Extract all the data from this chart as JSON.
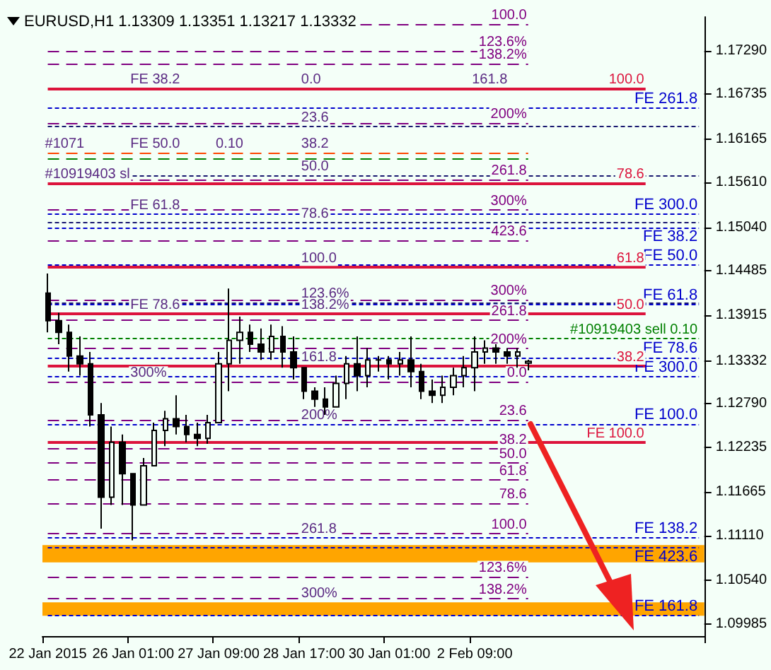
{
  "chart_data": {
    "type": "candlestick",
    "title": "EURUSD,H1 1.13309 1.13351 1.13217 1.13332",
    "color": "#000000",
    "categories": [
      "22 Jan 2015",
      null,
      null,
      null,
      null,
      null,
      null,
      null,
      "26 Jan 01:00",
      null,
      null,
      null,
      null,
      null,
      null,
      null,
      "27 Jan 09:00",
      null,
      null,
      null,
      null,
      null,
      null,
      null,
      "28 Jan 17:00",
      null,
      null,
      null,
      null,
      null,
      null,
      null,
      "30 Jan 01:00",
      null,
      null,
      null,
      null,
      null,
      null,
      null,
      "2 Feb 09:00",
      null,
      null,
      null,
      null,
      null,
      null,
      null,
      null,
      null,
      null,
      null,
      null,
      null,
      null,
      null,
      null,
      null,
      null,
      null,
      null,
      null
    ],
    "ohlc": [
      [
        1.142,
        1.1445,
        1.137,
        1.1385
      ],
      [
        1.1385,
        1.1395,
        1.1355,
        1.137
      ],
      [
        1.137,
        1.138,
        1.132,
        1.134
      ],
      [
        1.134,
        1.1365,
        1.1315,
        1.133
      ],
      [
        1.133,
        1.1345,
        1.125,
        1.1265
      ],
      [
        1.1265,
        1.128,
        1.112,
        1.116
      ],
      [
        1.116,
        1.125,
        1.115,
        1.123
      ],
      [
        1.123,
        1.124,
        1.115,
        1.119
      ],
      [
        1.119,
        1.119,
        1.1105,
        1.115
      ],
      [
        1.115,
        1.121,
        1.115,
        1.12
      ],
      [
        1.12,
        1.1255,
        1.12,
        1.1245
      ],
      [
        1.1245,
        1.127,
        1.1225,
        1.126
      ],
      [
        1.126,
        1.129,
        1.124,
        1.125
      ],
      [
        1.125,
        1.1265,
        1.123,
        1.124
      ],
      [
        1.124,
        1.1255,
        1.1225,
        1.1235
      ],
      [
        1.1235,
        1.1265,
        1.1228,
        1.1255
      ],
      [
        1.1255,
        1.1345,
        1.1255,
        1.133
      ],
      [
        1.133,
        1.1426,
        1.1295,
        1.136
      ],
      [
        1.136,
        1.139,
        1.133,
        1.137
      ],
      [
        1.137,
        1.138,
        1.1345,
        1.1355
      ],
      [
        1.1355,
        1.1375,
        1.1335,
        1.1345
      ],
      [
        1.1345,
        1.138,
        1.1335,
        1.1365
      ],
      [
        1.1365,
        1.1378,
        1.1325,
        1.1345
      ],
      [
        1.1345,
        1.1365,
        1.131,
        1.1325
      ],
      [
        1.1325,
        1.1325,
        1.1285,
        1.1295
      ],
      [
        1.1295,
        1.13,
        1.1275,
        1.1285
      ],
      [
        1.1285,
        1.13,
        1.1265,
        1.1275
      ],
      [
        1.1275,
        1.1315,
        1.1275,
        1.1305
      ],
      [
        1.1305,
        1.134,
        1.1285,
        1.133
      ],
      [
        1.133,
        1.1365,
        1.1295,
        1.1315
      ],
      [
        1.1315,
        1.135,
        1.13,
        1.1335
      ],
      [
        1.1335,
        1.134,
        1.132,
        1.1335
      ],
      [
        1.1335,
        1.134,
        1.131,
        1.133
      ],
      [
        1.133,
        1.1345,
        1.1315,
        1.1335
      ],
      [
        1.1335,
        1.1365,
        1.13,
        1.132
      ],
      [
        1.132,
        1.133,
        1.1285,
        1.1295
      ],
      [
        1.1295,
        1.131,
        1.128,
        1.129
      ],
      [
        1.129,
        1.1315,
        1.128,
        1.13
      ],
      [
        1.13,
        1.1325,
        1.129,
        1.1315
      ],
      [
        1.1315,
        1.134,
        1.13,
        1.1325
      ],
      [
        1.1325,
        1.1365,
        1.1295,
        1.1345
      ],
      [
        1.1345,
        1.136,
        1.133,
        1.135
      ],
      [
        1.135,
        1.1355,
        1.133,
        1.1345
      ],
      [
        1.1345,
        1.135,
        1.133,
        1.134
      ],
      [
        1.134,
        1.135,
        1.1325,
        1.1345
      ],
      [
        1.13309,
        1.13351,
        1.13217,
        1.13332
      ],
      null,
      null,
      null,
      null,
      null,
      null,
      null,
      null,
      null,
      null,
      null,
      null,
      null,
      null,
      null,
      null
    ],
    "ylim": [
      1.0983,
      1.1772
    ],
    "yticks": [
      {
        "value": 1.1729,
        "label": "1.17290"
      },
      {
        "value": 1.16735,
        "label": "1.16735"
      },
      {
        "value": 1.16165,
        "label": "1.16165"
      },
      {
        "value": 1.1561,
        "label": "1.15610"
      },
      {
        "value": 1.1504,
        "label": "1.15040"
      },
      {
        "value": 1.14485,
        "label": "1.14485"
      },
      {
        "value": 1.13915,
        "label": "1.13915"
      },
      {
        "value": 1.13332,
        "label": "1.13332"
      },
      {
        "value": 1.1279,
        "label": "1.12790"
      },
      {
        "value": 1.12235,
        "label": "1.12235"
      },
      {
        "value": 1.11665,
        "label": "1.11665"
      },
      {
        "value": 1.1111,
        "label": "1.11110"
      },
      {
        "value": 1.1054,
        "label": "1.10540"
      },
      {
        "value": 1.09985,
        "label": "1.09985"
      }
    ],
    "bands": [
      {
        "axis": "y",
        "from": 1.1077,
        "to": 1.1099,
        "color": "#ffa500"
      },
      {
        "axis": "y",
        "from": 1.1009,
        "to": 1.1026,
        "color": "#ffa500"
      }
    ],
    "ref_lines": [
      {
        "axis": "y",
        "value": 1.1656,
        "label": "FE 261.8",
        "color": "#0000cd",
        "line_style": "dotted"
      },
      {
        "axis": "y",
        "value": 1.1521,
        "label": "FE 300.0",
        "color": "#0000cd",
        "line_style": "dotted"
      },
      {
        "axis": "y",
        "value": 1.1504,
        "label": "FE 38.2",
        "color": "#0000cd",
        "line_style": "dotted"
      },
      {
        "axis": "y",
        "value": 1.1456,
        "label": "FE 50.0",
        "color": "#0000cd",
        "line_style": "dotted"
      },
      {
        "axis": "y",
        "value": 1.1405,
        "label": "FE 61.8",
        "color": "#0000cd",
        "line_style": "dotted"
      },
      {
        "axis": "y",
        "value": 1.1338,
        "label": "FE 78.6",
        "color": "#0000cd",
        "line_style": "dotted"
      },
      {
        "axis": "y",
        "value": 1.1314,
        "label": "FE 300.0",
        "color": "#0000cd",
        "line_style": "dotted"
      },
      {
        "axis": "y",
        "value": 1.1253,
        "label": "FE 100.0",
        "color": "#0000cd",
        "line_style": "dotted"
      },
      {
        "axis": "y",
        "value": 1.1108,
        "label": "FE 138.2",
        "color": "#0000cd",
        "line_style": "dotted"
      },
      {
        "axis": "y",
        "value": 1.1096,
        "label": "FE 423.6",
        "color": "#0000cd",
        "line_style": "dotted"
      },
      {
        "axis": "y",
        "value": 1.1009,
        "label": "FE 161.8",
        "color": "#0000cd",
        "line_style": "dotted"
      },
      {
        "axis": "y",
        "value": 1.1632,
        "color": "#191970",
        "line_style": "dotted"
      },
      {
        "axis": "y",
        "value": 1.157,
        "color": "#191970",
        "line_style": "dotted"
      },
      {
        "axis": "y",
        "value": 1.151,
        "color": "#191970",
        "line_style": "dotted"
      },
      {
        "axis": "y",
        "value": 1.1408,
        "color": "#191970",
        "line_style": "dotted"
      },
      {
        "axis": "y",
        "value": 1.1681,
        "color": "#dc143c",
        "line_style": "solid"
      },
      {
        "axis": "y",
        "value": 1.156,
        "color": "#dc143c",
        "line_style": "solid"
      },
      {
        "axis": "y",
        "value": 1.1453,
        "color": "#dc143c",
        "line_style": "solid"
      },
      {
        "axis": "y",
        "value": 1.1394,
        "color": "#dc143c",
        "line_style": "solid"
      },
      {
        "axis": "y",
        "value": 1.1327,
        "color": "#dc143c",
        "line_style": "solid"
      },
      {
        "axis": "y",
        "value": 1.123,
        "color": "#dc143c",
        "line_style": "solid"
      },
      {
        "axis": "y",
        "value": 1.1763,
        "color": "#800080",
        "line_style": "dashed"
      },
      {
        "axis": "y",
        "value": 1.1729,
        "color": "#800080",
        "line_style": "dashed"
      },
      {
        "axis": "y",
        "value": 1.1713,
        "color": "#800080",
        "line_style": "dashed"
      },
      {
        "axis": "y",
        "value": 1.1637,
        "color": "#800080",
        "line_style": "dashed"
      },
      {
        "axis": "y",
        "value": 1.1565,
        "color": "#800080",
        "line_style": "dashed"
      },
      {
        "axis": "y",
        "value": 1.1526,
        "color": "#800080",
        "line_style": "dashed"
      },
      {
        "axis": "y",
        "value": 1.1487,
        "color": "#800080",
        "line_style": "dashed"
      },
      {
        "axis": "y",
        "value": 1.1412,
        "color": "#800080",
        "line_style": "dashed"
      },
      {
        "axis": "y",
        "value": 1.1386,
        "color": "#800080",
        "line_style": "dashed"
      },
      {
        "axis": "y",
        "value": 1.135,
        "color": "#800080",
        "line_style": "dashed"
      },
      {
        "axis": "y",
        "value": 1.1307,
        "color": "#800080",
        "line_style": "dashed"
      },
      {
        "axis": "y",
        "value": 1.1259,
        "color": "#800080",
        "line_style": "dashed"
      },
      {
        "axis": "y",
        "value": 1.1222,
        "color": "#800080",
        "line_style": "dashed"
      },
      {
        "axis": "y",
        "value": 1.1204,
        "color": "#800080",
        "line_style": "dashed"
      },
      {
        "axis": "y",
        "value": 1.1182,
        "color": "#800080",
        "line_style": "dashed"
      },
      {
        "axis": "y",
        "value": 1.1152,
        "color": "#800080",
        "line_style": "dashed"
      },
      {
        "axis": "y",
        "value": 1.1114,
        "color": "#800080",
        "line_style": "dashed"
      },
      {
        "axis": "y",
        "value": 1.1059,
        "color": "#800080",
        "line_style": "dashed"
      },
      {
        "axis": "y",
        "value": 1.1031,
        "color": "#800080",
        "line_style": "dashed"
      },
      {
        "axis": "y",
        "value": 1.1599,
        "color": "#ff4500",
        "line_style": "dashed"
      },
      {
        "axis": "y",
        "value": 1.1592,
        "color": "#008000",
        "line_style": "dashed"
      },
      {
        "axis": "y",
        "value": 1.1362,
        "color": "#008000",
        "line_style": "dotted"
      }
    ],
    "annotations": [
      {
        "text": "#1071",
        "x": "22 Jan 2015",
        "y": 1.1599
      },
      {
        "text": "#10919403 sl",
        "x": "22 Jan 2015",
        "y": 1.156
      },
      {
        "text": "#10919403 sell 0.10",
        "y": 1.1362
      },
      {
        "text": "FE 38.2",
        "x": "26 Jan 01:00",
        "y": 1.1681
      },
      {
        "text": "FE 50.0",
        "x": "26 Jan 01:00",
        "y": 1.1599
      },
      {
        "text": "0.10",
        "x": "27 Jan 09:00",
        "y": 1.1599
      },
      {
        "text": "FE 61.8",
        "x": "26 Jan 01:00",
        "y": 1.1521
      },
      {
        "text": "FE 78.6",
        "x": "26 Jan 01:00",
        "y": 1.1394
      },
      {
        "text": "300%",
        "x": "26 Jan 01:00",
        "y": 1.1307
      },
      {
        "text": "FE 100.0",
        "y": 1.123
      },
      {
        "text": "0.0",
        "x": "28 Jan 17:00",
        "y": 1.1681
      },
      {
        "text": "23.6",
        "x": "28 Jan 17:00",
        "y": 1.1632
      },
      {
        "text": "38.2",
        "x": "28 Jan 17:00",
        "y": 1.1599
      },
      {
        "text": "50.0",
        "x": "28 Jan 17:00",
        "y": 1.157
      },
      {
        "text": "78.6",
        "x": "28 Jan 17:00",
        "y": 1.151
      },
      {
        "text": "100.0",
        "x": "28 Jan 17:00",
        "y": 1.1453
      },
      {
        "text": "123.6%",
        "x": "28 Jan 17:00",
        "y": 1.1408
      },
      {
        "text": "138.2%",
        "x": "28 Jan 17:00",
        "y": 1.1394
      },
      {
        "text": "161.8",
        "x": "28 Jan 17:00",
        "y": 1.1327
      },
      {
        "text": "200%",
        "x": "28 Jan 17:00",
        "y": 1.1253
      },
      {
        "text": "261.8",
        "x": "28 Jan 17:00",
        "y": 1.1108
      },
      {
        "text": "300%",
        "x": "28 Jan 17:00",
        "y": 1.1026
      },
      {
        "text": "161.8",
        "x": "2 Feb 09:00",
        "y": 1.1681
      },
      {
        "text": "100.0",
        "y": 1.1681
      },
      {
        "text": "78.6",
        "y": 1.156
      },
      {
        "text": "61.8",
        "y": 1.1453
      },
      {
        "text": "50.0",
        "y": 1.1394
      },
      {
        "text": "38.2",
        "y": 1.1327
      },
      {
        "text": "100.0",
        "y": 1.1763
      },
      {
        "text": "123.6%",
        "y": 1.1729
      },
      {
        "text": "138.2%",
        "y": 1.1713
      },
      {
        "text": "200%",
        "y": 1.1637
      },
      {
        "text": "261.8",
        "y": 1.1565
      },
      {
        "text": "300%",
        "y": 1.1526
      },
      {
        "text": "423.6",
        "y": 1.1487
      },
      {
        "text": "300%",
        "y": 1.1412
      },
      {
        "text": "261.8",
        "y": 1.1386
      },
      {
        "text": "200%",
        "y": 1.135
      },
      {
        "text": "0.0",
        "y": 1.1307
      },
      {
        "text": "23.6",
        "y": 1.1259
      },
      {
        "text": "38.2",
        "y": 1.1222
      },
      {
        "text": "50.0",
        "y": 1.1204
      },
      {
        "text": "61.8",
        "y": 1.1182
      },
      {
        "text": "78.6",
        "y": 1.1152
      },
      {
        "text": "100.0",
        "y": 1.1114
      },
      {
        "text": "123.6%",
        "y": 1.1059
      },
      {
        "text": "138.2%",
        "y": 1.1031
      }
    ]
  }
}
